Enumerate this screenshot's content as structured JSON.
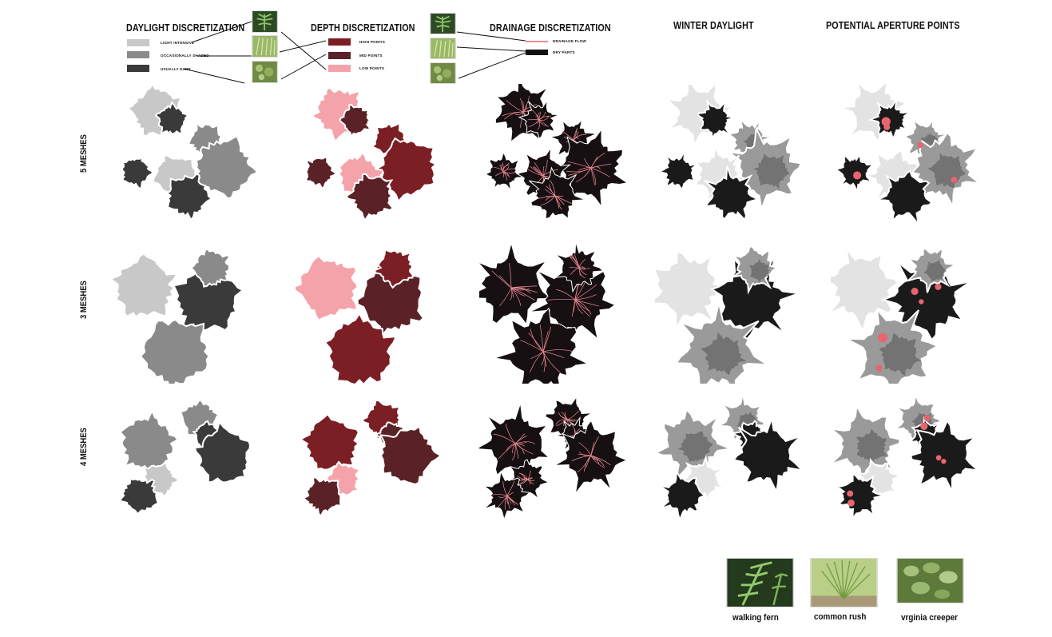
{
  "headers": {
    "daylight": "DAYLIGHT DISCRETIZATION",
    "depth": "DEPTH DISCRETIZATION",
    "drainage": "DRAINAGE DISCRETIZATION",
    "winter": "WINTER DAYLIGHT",
    "aperture": "POTENTIAL APERTURE POINTS"
  },
  "legend_daylight": [
    {
      "label": "LIGHT INTENSIVE",
      "color": "#c8c8c8"
    },
    {
      "label": "OCCASIONALLY SHADED",
      "color": "#8a8a8a"
    },
    {
      "label": "USUALLY DARK",
      "color": "#3a3a3a"
    }
  ],
  "legend_depth": [
    {
      "label": "HIGH POINTS",
      "color": "#7b1f24"
    },
    {
      "label": "MID POINTS",
      "color": "#5a2226"
    },
    {
      "label": "LOW POINTS",
      "color": "#f4a3aa"
    }
  ],
  "legend_drainage": [
    {
      "label": "DRAINAGE FLOW",
      "color": "#f08a95"
    },
    {
      "label": "DRY PARTS",
      "color": "#111111"
    }
  ],
  "row_labels": [
    "5 MESHES",
    "3 MESHES",
    "4 MESHES"
  ],
  "plants": [
    {
      "name": "walking fern",
      "icon": "fern-photo"
    },
    {
      "name": "common rush",
      "icon": "rush-photo"
    },
    {
      "name": "vrginia creeper",
      "icon": "creeper-photo"
    }
  ],
  "colors": {
    "light": "#c8c8c8",
    "mid": "#8a8a8a",
    "dark": "#3a3a3a",
    "depth_high": "#7b1f24",
    "depth_mid": "#5a2226",
    "depth_low": "#f4a3aa",
    "drain_line": "#f08a95",
    "aperture": "#e8646e"
  }
}
